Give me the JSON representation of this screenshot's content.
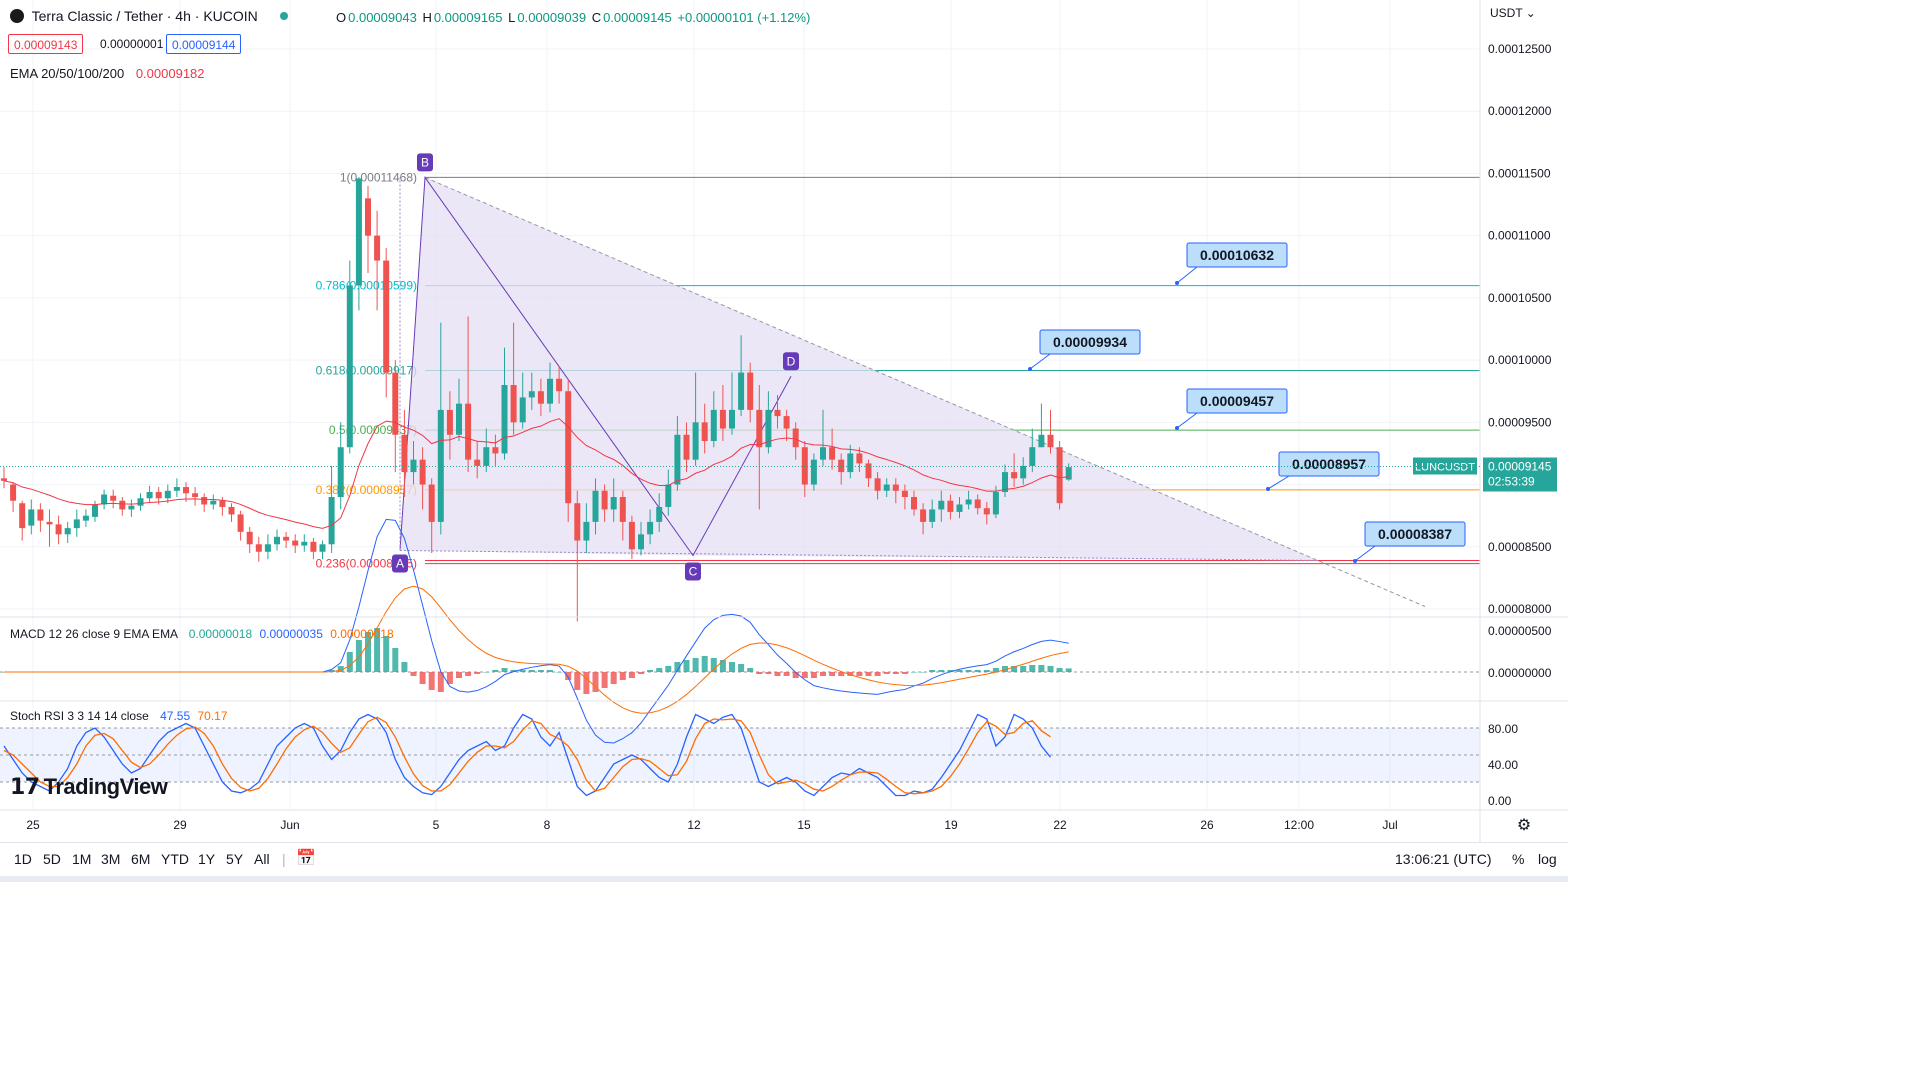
{
  "header": {
    "symbol_title": "Terra Classic / Tether · 4h · KUCOIN",
    "ohlc": {
      "o_label": "O",
      "o": "0.00009043",
      "h_label": "H",
      "h": "0.00009165",
      "l_label": "L",
      "l": "0.00009039",
      "c_label": "C",
      "c": "0.00009145",
      "change": "+0.00000101 (+1.12%)"
    },
    "bid": "0.00009143",
    "spread": "0.00000001",
    "ask": "0.00009144",
    "ema_label": "EMA 20/50/100/200",
    "ema_value": "0.00009182"
  },
  "currency_selector": "USDT",
  "price_axis": {
    "labels": [
      "0.00012500",
      "0.00012000",
      "0.00011500",
      "0.00011000",
      "0.00010500",
      "0.00010000",
      "0.00009500",
      "0.00009000",
      "0.00008500",
      "0.00008000"
    ],
    "symbol_tag": "LUNCUSDT",
    "last_price": "0.00009145",
    "countdown": "02:53:39"
  },
  "time_axis": {
    "labels": [
      "25",
      "29",
      "Jun",
      "5",
      "8",
      "12",
      "15",
      "19",
      "22",
      "26",
      "12:00",
      "Jul"
    ]
  },
  "fib_levels": [
    {
      "label": "1(0.00011468)",
      "price": 0.00011468
    },
    {
      "label": "0.786(0.00010599)",
      "price": 0.00010599
    },
    {
      "label": "0.618(0.00009917)",
      "price": 9.917e-05
    },
    {
      "label": "0.5(0.00009437)",
      "price": 9.437e-05
    },
    {
      "label": "0.382(0.00008957)",
      "price": 8.957e-05
    },
    {
      "label": "0.236(0.00008365)",
      "price": 8.365e-05
    }
  ],
  "pattern_points": [
    "A",
    "B",
    "C",
    "D"
  ],
  "price_callouts": [
    "0.00010632",
    "0.00009934",
    "0.00009457",
    "0.00008957",
    "0.00008387"
  ],
  "macd": {
    "label": "MACD 12 26 close 9 EMA EMA",
    "hist": "0.00000018",
    "macd": "0.00000035",
    "signal": "0.00000018",
    "axis_labels": [
      "0.00000500",
      "0.00000000"
    ]
  },
  "stoch_rsi": {
    "label": "Stoch RSI 3 3 14 14 close",
    "k": "47.55",
    "d": "70.17",
    "axis_labels": [
      "80.00",
      "40.00",
      "0.00"
    ]
  },
  "ranges": [
    "1D",
    "5D",
    "1M",
    "3M",
    "6M",
    "YTD",
    "1Y",
    "5Y",
    "All"
  ],
  "clock": "13:06:21 (UTC)",
  "percent_toggle": "%",
  "log_toggle": "log",
  "brand": "TradingView",
  "colors": {
    "up": "#26a69a",
    "down": "#ef5350",
    "ema": "#f23645",
    "macd": "#2962ff",
    "signal": "#ff6d00",
    "triangle_fill": "#e6dff3",
    "accent": "#673ab7",
    "callout_fill": "#bbdefb",
    "callout_border": "#2962ff"
  },
  "chart_data": {
    "type": "candlestick",
    "timeframe": "4h",
    "ylim": [
      7.95e-05,
      0.000128
    ],
    "candles": [
      [
        9.05e-05,
        9.03e-05,
        9.14e-05,
        8.97e-05
      ],
      [
        9e-05,
        8.87e-05,
        9.02e-05,
        8.78e-05
      ],
      [
        8.85e-05,
        8.65e-05,
        8.87e-05,
        8.55e-05
      ],
      [
        8.67e-05,
        8.8e-05,
        8.88e-05,
        8.6e-05
      ],
      [
        8.8e-05,
        8.71e-05,
        8.85e-05,
        8.62e-05
      ],
      [
        8.7e-05,
        8.68e-05,
        8.8e-05,
        8.5e-05
      ],
      [
        8.68e-05,
        8.6e-05,
        8.75e-05,
        8.52e-05
      ],
      [
        8.6e-05,
        8.65e-05,
        8.7e-05,
        8.53e-05
      ],
      [
        8.65e-05,
        8.72e-05,
        8.8e-05,
        8.58e-05
      ],
      [
        8.71e-05,
        8.75e-05,
        8.8e-05,
        8.66e-05
      ],
      [
        8.74e-05,
        8.84e-05,
        8.87e-05,
        8.7e-05
      ],
      [
        8.84e-05,
        8.92e-05,
        8.96e-05,
        8.8e-05
      ],
      [
        8.91e-05,
        8.87e-05,
        8.96e-05,
        8.81e-05
      ],
      [
        8.87e-05,
        8.8e-05,
        8.9e-05,
        8.75e-05
      ],
      [
        8.8e-05,
        8.83e-05,
        8.88e-05,
        8.74e-05
      ],
      [
        8.83e-05,
        8.89e-05,
        8.93e-05,
        8.79e-05
      ],
      [
        8.89e-05,
        8.94e-05,
        8.99e-05,
        8.86e-05
      ],
      [
        8.94e-05,
        8.89e-05,
        8.98e-05,
        8.84e-05
      ],
      [
        8.89e-05,
        8.95e-05,
        9e-05,
        8.85e-05
      ],
      [
        8.95e-05,
        8.98e-05,
        9.05e-05,
        8.9e-05
      ],
      [
        8.98e-05,
        8.93e-05,
        9.02e-05,
        8.86e-05
      ],
      [
        8.93e-05,
        8.9e-05,
        8.98e-05,
        8.83e-05
      ],
      [
        8.9e-05,
        8.84e-05,
        8.93e-05,
        8.78e-05
      ],
      [
        8.84e-05,
        8.87e-05,
        8.92e-05,
        8.8e-05
      ],
      [
        8.87e-05,
        8.82e-05,
        8.9e-05,
        8.75e-05
      ],
      [
        8.82e-05,
        8.76e-05,
        8.85e-05,
        8.7e-05
      ],
      [
        8.76e-05,
        8.62e-05,
        8.79e-05,
        8.55e-05
      ],
      [
        8.62e-05,
        8.52e-05,
        8.66e-05,
        8.45e-05
      ],
      [
        8.52e-05,
        8.46e-05,
        8.58e-05,
        8.38e-05
      ],
      [
        8.46e-05,
        8.52e-05,
        8.6e-05,
        8.4e-05
      ],
      [
        8.52e-05,
        8.58e-05,
        8.64e-05,
        8.47e-05
      ],
      [
        8.58e-05,
        8.55e-05,
        8.62e-05,
        8.49e-05
      ],
      [
        8.55e-05,
        8.51e-05,
        8.6e-05,
        8.45e-05
      ],
      [
        8.51e-05,
        8.54e-05,
        8.6e-05,
        8.46e-05
      ],
      [
        8.54e-05,
        8.46e-05,
        8.57e-05,
        8.4e-05
      ],
      [
        8.46e-05,
        8.52e-05,
        8.55e-05,
        8.4e-05
      ],
      [
        8.52e-05,
        8.9e-05,
        9.15e-05,
        8.45e-05
      ],
      [
        8.9e-05,
        9.3e-05,
        9.5e-05,
        8.8e-05
      ],
      [
        9.3e-05,
        0.000106,
        0.000108,
        9.25e-05
      ],
      [
        0.000106,
        0.0001146,
        0.0001147,
        0.000104
      ],
      [
        0.000113,
        0.00011,
        0.000114,
        0.000107
      ],
      [
        0.00011,
        0.000108,
        0.000112,
        0.000104
      ],
      [
        0.000108,
        9.9e-05,
        0.000109,
        9.7e-05
      ],
      [
        9.9e-05,
        9.4e-05,
        0.0001,
        9.1e-05
      ],
      [
        9.4e-05,
        9.1e-05,
        9.6e-05,
        8.9e-05
      ],
      [
        9.1e-05,
        9.2e-05,
        9.35e-05,
        9e-05
      ],
      [
        9.2e-05,
        9e-05,
        9.3e-05,
        8.8e-05
      ],
      [
        9e-05,
        8.7e-05,
        9.05e-05,
        8.45e-05
      ],
      [
        8.7e-05,
        9.6e-05,
        0.000103,
        8.6e-05
      ],
      [
        9.6e-05,
        9.4e-05,
        9.75e-05,
        9.2e-05
      ],
      [
        9.4e-05,
        9.65e-05,
        9.85e-05,
        9.35e-05
      ],
      [
        9.65e-05,
        9.2e-05,
        0.0001035,
        9.1e-05
      ],
      [
        9.2e-05,
        9.15e-05,
        9.35e-05,
        9.05e-05
      ],
      [
        9.15e-05,
        9.3e-05,
        9.45e-05,
        9.1e-05
      ],
      [
        9.3e-05,
        9.25e-05,
        9.4e-05,
        9.15e-05
      ],
      [
        9.25e-05,
        9.8e-05,
        0.000101,
        9.2e-05
      ],
      [
        9.8e-05,
        9.5e-05,
        0.000103,
        9.4e-05
      ],
      [
        9.5e-05,
        9.7e-05,
        9.9e-05,
        9.45e-05
      ],
      [
        9.7e-05,
        9.75e-05,
        9.9e-05,
        9.6e-05
      ],
      [
        9.75e-05,
        9.65e-05,
        9.85e-05,
        9.55e-05
      ],
      [
        9.65e-05,
        9.85e-05,
        9.98e-05,
        9.58e-05
      ],
      [
        9.85e-05,
        9.75e-05,
        9.95e-05,
        9.65e-05
      ],
      [
        9.75e-05,
        8.85e-05,
        9.85e-05,
        8.7e-05
      ],
      [
        8.85e-05,
        8.55e-05,
        8.95e-05,
        7.9e-05
      ],
      [
        8.55e-05,
        8.7e-05,
        8.85e-05,
        8.45e-05
      ],
      [
        8.7e-05,
        8.95e-05,
        9.05e-05,
        8.6e-05
      ],
      [
        8.95e-05,
        8.8e-05,
        9e-05,
        8.7e-05
      ],
      [
        8.8e-05,
        8.9e-05,
        9.05e-05,
        8.7e-05
      ],
      [
        8.9e-05,
        8.7e-05,
        8.95e-05,
        8.55e-05
      ],
      [
        8.7e-05,
        8.48e-05,
        8.75e-05,
        8.4e-05
      ],
      [
        8.48e-05,
        8.6e-05,
        8.7e-05,
        8.43e-05
      ],
      [
        8.6e-05,
        8.7e-05,
        8.8e-05,
        8.52e-05
      ],
      [
        8.7e-05,
        8.82e-05,
        8.93e-05,
        8.62e-05
      ],
      [
        8.82e-05,
        9e-05,
        9.12e-05,
        8.75e-05
      ],
      [
        9e-05,
        9.4e-05,
        9.55e-05,
        8.95e-05
      ],
      [
        9.4e-05,
        9.2e-05,
        9.5e-05,
        9.1e-05
      ],
      [
        9.2e-05,
        9.5e-05,
        9.9e-05,
        9.15e-05
      ],
      [
        9.5e-05,
        9.35e-05,
        9.65e-05,
        9.25e-05
      ],
      [
        9.35e-05,
        9.6e-05,
        9.75e-05,
        9.3e-05
      ],
      [
        9.6e-05,
        9.45e-05,
        9.8e-05,
        9.35e-05
      ],
      [
        9.45e-05,
        9.6e-05,
        9.9e-05,
        9.4e-05
      ],
      [
        9.6e-05,
        9.9e-05,
        0.000102,
        9.55e-05
      ],
      [
        9.9e-05,
        9.6e-05,
        9.98e-05,
        9.5e-05
      ],
      [
        9.6e-05,
        9.3e-05,
        9.8e-05,
        8.8e-05
      ],
      [
        9.3e-05,
        9.6e-05,
        9.75e-05,
        9.25e-05
      ],
      [
        9.6e-05,
        9.55e-05,
        9.72e-05,
        9.45e-05
      ],
      [
        9.55e-05,
        9.45e-05,
        9.6e-05,
        9.35e-05
      ],
      [
        9.45e-05,
        9.3e-05,
        9.5e-05,
        9.2e-05
      ],
      [
        9.3e-05,
        9e-05,
        9.35e-05,
        8.9e-05
      ],
      [
        9e-05,
        9.2e-05,
        9.25e-05,
        8.95e-05
      ],
      [
        9.2e-05,
        9.3e-05,
        9.6e-05,
        9.15e-05
      ],
      [
        9.3e-05,
        9.2e-05,
        9.45e-05,
        9.12e-05
      ],
      [
        9.2e-05,
        9.1e-05,
        9.25e-05,
        9e-05
      ],
      [
        9.1e-05,
        9.25e-05,
        9.32e-05,
        9.05e-05
      ],
      [
        9.25e-05,
        9.17e-05,
        9.3e-05,
        9.1e-05
      ],
      [
        9.17e-05,
        9.05e-05,
        9.2e-05,
        8.98e-05
      ],
      [
        9.05e-05,
        8.95e-05,
        9.1e-05,
        8.88e-05
      ],
      [
        8.95e-05,
        9e-05,
        9.05e-05,
        8.9e-05
      ],
      [
        9e-05,
        8.95e-05,
        9.05e-05,
        8.85e-05
      ],
      [
        8.95e-05,
        8.9e-05,
        9e-05,
        8.8e-05
      ],
      [
        8.9e-05,
        8.8e-05,
        8.95e-05,
        8.75e-05
      ],
      [
        8.8e-05,
        8.7e-05,
        8.85e-05,
        8.6e-05
      ],
      [
        8.7e-05,
        8.8e-05,
        8.88e-05,
        8.65e-05
      ],
      [
        8.8e-05,
        8.87e-05,
        8.95e-05,
        8.7e-05
      ],
      [
        8.87e-05,
        8.78e-05,
        8.92e-05,
        8.72e-05
      ],
      [
        8.78e-05,
        8.84e-05,
        8.9e-05,
        8.73e-05
      ],
      [
        8.84e-05,
        8.88e-05,
        8.95e-05,
        8.8e-05
      ],
      [
        8.88e-05,
        8.81e-05,
        8.92e-05,
        8.76e-05
      ],
      [
        8.81e-05,
        8.76e-05,
        8.86e-05,
        8.68e-05
      ],
      [
        8.76e-05,
        8.94e-05,
        8.99e-05,
        8.73e-05
      ],
      [
        8.94e-05,
        9.1e-05,
        9.16e-05,
        8.9e-05
      ],
      [
        9.1e-05,
        9.05e-05,
        9.25e-05,
        8.98e-05
      ],
      [
        9.05e-05,
        9.15e-05,
        9.22e-05,
        9e-05
      ],
      [
        9.15e-05,
        9.3e-05,
        9.45e-05,
        9.1e-05
      ],
      [
        9.3e-05,
        9.4e-05,
        9.65e-05,
        9.3e-05
      ],
      [
        9.4e-05,
        9.3e-05,
        9.6e-05,
        9.25e-05
      ],
      [
        9.3e-05,
        8.85e-05,
        9.35e-05,
        8.8e-05
      ],
      [
        9.04e-05,
        9.14e-05,
        9.17e-05,
        9.03e-05
      ]
    ],
    "ema_line": "20-period EMA",
    "macd_hist": [
      0,
      0,
      0,
      0,
      0,
      0,
      0,
      0,
      0,
      0,
      0,
      0,
      0,
      0,
      0,
      0,
      0,
      0,
      0,
      0,
      0,
      0,
      0,
      0,
      0,
      0,
      0,
      0,
      0,
      0,
      0,
      0,
      0,
      0,
      0,
      0,
      0.1,
      0.3,
      1.0,
      1.6,
      2.0,
      2.2,
      1.8,
      1.2,
      0.5,
      -0.2,
      -0.6,
      -0.9,
      -1.0,
      -0.6,
      -0.3,
      -0.2,
      -0.1,
      0,
      0.1,
      0.2,
      0.1,
      0.1,
      0.1,
      0.1,
      0.1,
      0,
      -0.4,
      -0.9,
      -1.1,
      -1.0,
      -0.8,
      -0.6,
      -0.4,
      -0.3,
      -0.1,
      0.1,
      0.2,
      0.3,
      0.5,
      0.6,
      0.7,
      0.8,
      0.7,
      0.6,
      0.5,
      0.4,
      0.2,
      -0.1,
      -0.1,
      -0.2,
      -0.2,
      -0.3,
      -0.3,
      -0.3,
      -0.2,
      -0.2,
      -0.2,
      -0.2,
      -0.2,
      -0.2,
      -0.2,
      -0.1,
      -0.1,
      -0.1,
      0,
      0,
      0.1,
      0.1,
      0.1,
      0.1,
      0.1,
      0.1,
      0.1,
      0.2,
      0.3,
      0.3,
      0.3,
      0.35,
      0.35,
      0.3,
      0.2,
      0.18
    ],
    "stoch_k": [
      60,
      45,
      30,
      20,
      15,
      10,
      20,
      35,
      60,
      75,
      80,
      70,
      55,
      40,
      30,
      35,
      50,
      65,
      75,
      80,
      85,
      80,
      60,
      40,
      20,
      10,
      8,
      12,
      20,
      40,
      60,
      70,
      80,
      85,
      80,
      60,
      45,
      55,
      75,
      90,
      95,
      90,
      75,
      45,
      25,
      15,
      8,
      6,
      15,
      30,
      45,
      55,
      60,
      65,
      55,
      60,
      80,
      95,
      90,
      70,
      60,
      75,
      45,
      15,
      5,
      10,
      25,
      40,
      45,
      50,
      45,
      35,
      25,
      20,
      40,
      70,
      95,
      90,
      85,
      92,
      95,
      80,
      50,
      20,
      15,
      20,
      25,
      20,
      10,
      5,
      15,
      25,
      30,
      28,
      35,
      30,
      25,
      15,
      5,
      5,
      10,
      8,
      12,
      25,
      40,
      55,
      75,
      95,
      90,
      60,
      70,
      95,
      90,
      80,
      60,
      47.55
    ],
    "stoch_d": [
      55,
      50,
      40,
      30,
      20,
      15,
      15,
      25,
      40,
      60,
      72,
      74,
      68,
      55,
      42,
      36,
      40,
      50,
      62,
      72,
      79,
      81,
      74,
      60,
      40,
      24,
      14,
      10,
      13,
      24,
      40,
      57,
      70,
      78,
      82,
      75,
      63,
      53,
      58,
      73,
      87,
      92,
      86,
      70,
      48,
      29,
      16,
      10,
      10,
      17,
      30,
      43,
      53,
      60,
      60,
      58,
      65,
      78,
      88,
      85,
      73,
      68,
      60,
      45,
      22,
      10,
      13,
      25,
      37,
      45,
      46,
      43,
      35,
      27,
      28,
      43,
      68,
      85,
      90,
      89,
      90,
      88,
      75,
      50,
      28,
      18,
      20,
      22,
      18,
      12,
      10,
      15,
      22,
      28,
      31,
      31,
      30,
      23,
      15,
      8,
      7,
      8,
      10,
      15,
      26,
      40,
      57,
      75,
      87,
      82,
      73,
      75,
      85,
      88,
      77,
      70.17
    ]
  }
}
